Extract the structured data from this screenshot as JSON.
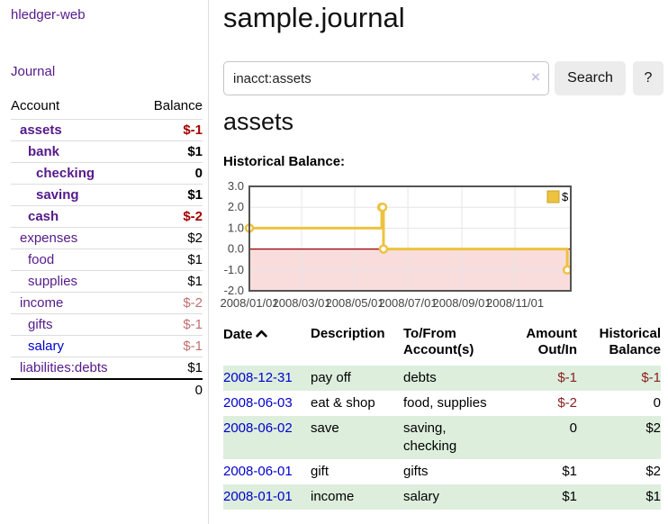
{
  "sidebar": {
    "brand": "hledger-web",
    "nav": {
      "journal": "Journal"
    },
    "accounts_table": {
      "headers": {
        "account": "Account",
        "balance": "Balance"
      },
      "rows": [
        {
          "name": "assets",
          "balance": "$-1"
        },
        {
          "name": "bank",
          "balance": "$1"
        },
        {
          "name": "checking",
          "balance": "0"
        },
        {
          "name": "saving",
          "balance": "$1"
        },
        {
          "name": "cash",
          "balance": "$-2"
        },
        {
          "name": "expenses",
          "balance": "$2"
        },
        {
          "name": "food",
          "balance": "$1"
        },
        {
          "name": "supplies",
          "balance": "$1"
        },
        {
          "name": "income",
          "balance": "$-2"
        },
        {
          "name": "gifts",
          "balance": "$-1"
        },
        {
          "name": "salary",
          "balance": "$-1"
        },
        {
          "name": "liabilities:debts",
          "balance": "$1"
        }
      ],
      "total": "0"
    }
  },
  "header": {
    "title": "sample.journal"
  },
  "search": {
    "value": "inacct:assets",
    "clear_icon": "×",
    "button_label": "Search",
    "help_button_label": "?"
  },
  "account_page": {
    "heading": "assets",
    "chart_label": "Historical Balance:"
  },
  "chart_data": {
    "type": "line",
    "title": "Historical Balance:",
    "step": true,
    "series": [
      {
        "name": "$",
        "color": "#edc240",
        "points": [
          [
            "2008-01-01",
            1
          ],
          [
            "2008-06-01",
            2
          ],
          [
            "2008-06-02",
            2
          ],
          [
            "2008-06-03",
            0
          ],
          [
            "2008-12-31",
            -1
          ]
        ]
      }
    ],
    "x_ticks": [
      "2008/01/01",
      "2008/03/01",
      "2008/05/01",
      "2008/07/01",
      "2008/09/01",
      "2008/11/01"
    ],
    "y_ticks": [
      3.0,
      2.0,
      1.0,
      0.0,
      -1.0,
      -2.0
    ],
    "ylim": [
      -2,
      3
    ],
    "grid": true,
    "legend_position": "top-right",
    "negative_region_color": "#f9dcdc",
    "zero_line_color": "#990000",
    "border_color": "#545454",
    "gridline_color": "#e6e6e6"
  },
  "register_table": {
    "headers": {
      "date": "Date",
      "description": "Description",
      "accounts": "To/From\nAccount(s)",
      "amount": "Amount\nOut/In",
      "balance": "Historical\nBalance"
    },
    "rows": [
      {
        "date": "2008-12-31",
        "description": "pay off",
        "accounts": "debts",
        "amount": "$-1",
        "balance": "$-1"
      },
      {
        "date": "2008-06-03",
        "description": "eat & shop",
        "accounts": "food, supplies",
        "amount": "$-2",
        "balance": "0"
      },
      {
        "date": "2008-06-02",
        "description": "save",
        "accounts": "saving,\nchecking",
        "amount": "0",
        "balance": "$2"
      },
      {
        "date": "2008-06-01",
        "description": "gift",
        "accounts": "gifts",
        "amount": "$1",
        "balance": "$2"
      },
      {
        "date": "2008-01-01",
        "description": "income",
        "accounts": "salary",
        "amount": "$1",
        "balance": "$1"
      }
    ]
  },
  "colors": {
    "link_purple": "#551a8b",
    "link_blue": "#0000cc",
    "negative_strong": "#a40000",
    "negative_light": "#bf7070",
    "negative_table": "#8b2020",
    "row_stripe_green": "#ddeedd",
    "chart_series_gold": "#edc240",
    "chart_negative_region": "#f9dcdc",
    "chart_zero_line": "#990000"
  }
}
